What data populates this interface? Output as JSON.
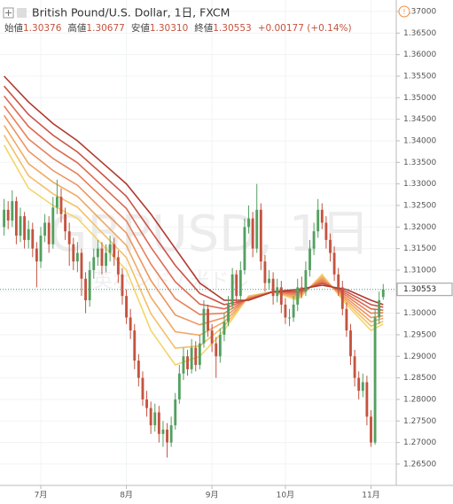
{
  "header": {
    "title": "British Pound/U.S. Dollar, 1日, FXCM",
    "items": [
      {
        "label": "始値",
        "value": "1.30376"
      },
      {
        "label": "高値",
        "value": "1.30677"
      },
      {
        "label": "安値",
        "value": "1.30310"
      },
      {
        "label": "終値",
        "value": "1.30553"
      }
    ],
    "change": "+0.00177 (+0.14%)"
  },
  "chart_data": {
    "type": "candlestick",
    "watermark": "GBPUSD, 1日",
    "watermark_subtitle": "英ポンド / 米ドル",
    "up_color": "#53a060",
    "down_color": "#c4533f",
    "open": [
      1.32,
      1.324,
      1.3215,
      1.326,
      1.318,
      1.3225,
      1.317,
      1.3195,
      1.315,
      1.312,
      1.318,
      1.321,
      1.316,
      1.3245,
      1.327,
      1.323,
      1.319,
      1.316,
      1.312,
      1.314,
      1.308,
      1.303,
      1.31,
      1.313,
      1.315,
      1.311,
      1.314,
      1.316,
      1.313,
      1.309,
      1.304,
      1.299,
      1.296,
      1.289,
      1.285,
      1.28,
      1.278,
      1.274,
      1.277,
      1.272,
      1.273,
      1.27,
      1.274,
      1.28,
      1.286,
      1.29,
      1.287,
      1.292,
      1.288,
      1.293,
      1.301,
      1.296,
      1.293,
      1.29,
      1.295,
      1.298,
      1.302,
      1.309,
      1.304,
      1.31,
      1.32,
      1.322,
      1.315,
      1.324,
      1.312,
      1.307,
      1.308,
      1.304,
      1.306,
      1.302,
      1.299,
      1.299,
      1.302,
      1.306,
      1.305,
      1.31,
      1.315,
      1.319,
      1.324,
      1.321,
      1.317,
      1.314,
      1.309,
      1.306,
      1.301,
      1.296,
      1.29,
      1.285,
      1.282,
      1.284,
      1.276,
      1.27,
      1.299,
      1.30376
    ],
    "high": [
      1.3265,
      1.326,
      1.3285,
      1.327,
      1.3245,
      1.3235,
      1.3215,
      1.321,
      1.3165,
      1.32,
      1.323,
      1.3225,
      1.327,
      1.331,
      1.329,
      1.3245,
      1.321,
      1.3175,
      1.3165,
      1.315,
      1.3095,
      1.312,
      1.315,
      1.317,
      1.3165,
      1.316,
      1.318,
      1.3175,
      1.3145,
      1.3105,
      1.3055,
      1.301,
      1.2975,
      1.2905,
      1.2865,
      1.282,
      1.2795,
      1.279,
      1.2785,
      1.275,
      1.2745,
      1.276,
      1.2815,
      1.288,
      1.292,
      1.2915,
      1.294,
      1.2935,
      1.295,
      1.303,
      1.302,
      1.2975,
      1.2945,
      1.2965,
      1.3,
      1.304,
      1.3105,
      1.31,
      1.312,
      1.322,
      1.325,
      1.3235,
      1.33,
      1.3255,
      1.3135,
      1.31,
      1.3095,
      1.308,
      1.3075,
      1.3035,
      1.301,
      1.304,
      1.308,
      1.3085,
      1.312,
      1.317,
      1.321,
      1.3265,
      1.3255,
      1.3225,
      1.3185,
      1.3155,
      1.3105,
      1.3075,
      1.3025,
      1.2975,
      1.2915,
      1.2865,
      1.286,
      1.2855,
      1.2775,
      1.301,
      1.305,
      1.30677
    ],
    "low": [
      1.318,
      1.3195,
      1.32,
      1.316,
      1.3165,
      1.315,
      1.315,
      1.313,
      1.306,
      1.3105,
      1.3165,
      1.314,
      1.315,
      1.323,
      1.321,
      1.317,
      1.311,
      1.31,
      1.3095,
      1.304,
      1.3,
      1.3015,
      1.308,
      1.311,
      1.309,
      1.3095,
      1.312,
      1.311,
      1.307,
      1.302,
      1.2975,
      1.294,
      1.287,
      1.283,
      1.2785,
      1.276,
      1.272,
      1.2725,
      1.27,
      1.269,
      1.2665,
      1.269,
      1.273,
      1.279,
      1.2845,
      1.2855,
      1.286,
      1.2865,
      1.287,
      1.292,
      1.2945,
      1.291,
      1.285,
      1.2885,
      1.2935,
      1.297,
      1.301,
      1.3025,
      1.303,
      1.309,
      1.3185,
      1.313,
      1.314,
      1.31,
      1.305,
      1.3055,
      1.302,
      1.3025,
      1.3,
      1.2975,
      1.297,
      1.298,
      1.3005,
      1.3035,
      1.304,
      1.3085,
      1.3135,
      1.3175,
      1.3195,
      1.315,
      1.312,
      1.3075,
      1.304,
      1.2995,
      1.2945,
      1.288,
      1.283,
      1.28,
      1.2805,
      1.274,
      1.269,
      1.2695,
      1.2975,
      1.3031
    ],
    "close": [
      1.324,
      1.3215,
      1.326,
      1.318,
      1.3225,
      1.317,
      1.3195,
      1.315,
      1.312,
      1.318,
      1.321,
      1.316,
      1.3245,
      1.327,
      1.323,
      1.319,
      1.316,
      1.312,
      1.314,
      1.308,
      1.303,
      1.31,
      1.313,
      1.315,
      1.311,
      1.314,
      1.316,
      1.313,
      1.309,
      1.304,
      1.299,
      1.296,
      1.289,
      1.285,
      1.28,
      1.278,
      1.274,
      1.277,
      1.272,
      1.273,
      1.27,
      1.274,
      1.28,
      1.286,
      1.29,
      1.287,
      1.292,
      1.288,
      1.293,
      1.301,
      1.296,
      1.293,
      1.29,
      1.295,
      1.298,
      1.302,
      1.309,
      1.304,
      1.31,
      1.32,
      1.322,
      1.315,
      1.324,
      1.312,
      1.307,
      1.308,
      1.304,
      1.306,
      1.302,
      1.299,
      1.299,
      1.302,
      1.306,
      1.305,
      1.31,
      1.315,
      1.319,
      1.324,
      1.321,
      1.317,
      1.314,
      1.309,
      1.306,
      1.301,
      1.296,
      1.29,
      1.285,
      1.282,
      1.284,
      1.276,
      1.27,
      1.299,
      1.303,
      1.30553
    ],
    "moving_averages": {
      "x": [
        0,
        6,
        12,
        18,
        24,
        30,
        36,
        42,
        48,
        54,
        60,
        66,
        72,
        78,
        84,
        90,
        93
      ],
      "series": [
        {
          "color": "#f5d46c",
          "values": [
            1.339,
            1.329,
            1.325,
            1.322,
            1.316,
            1.31,
            1.296,
            1.288,
            1.29,
            1.296,
            1.304,
            1.305,
            1.303,
            1.309,
            1.302,
            1.296,
            1.2975
          ]
        },
        {
          "color": "#f4bf68",
          "values": [
            1.3413,
            1.3319,
            1.3277,
            1.3246,
            1.3187,
            1.3129,
            1.2999,
            1.2919,
            1.2924,
            1.297,
            1.3039,
            1.305,
            1.3034,
            1.3086,
            1.3025,
            1.297,
            1.2981
          ]
        },
        {
          "color": "#f1a964",
          "values": [
            1.3436,
            1.3347,
            1.3304,
            1.3271,
            1.3214,
            1.3157,
            1.3037,
            1.2957,
            1.2949,
            1.298,
            1.3037,
            1.305,
            1.3037,
            1.3083,
            1.303,
            1.298,
            1.2988
          ]
        },
        {
          "color": "#ed955f",
          "values": [
            1.3459,
            1.3376,
            1.3331,
            1.3297,
            1.3241,
            1.3186,
            1.3076,
            1.2996,
            1.2973,
            1.299,
            1.3036,
            1.305,
            1.3041,
            1.3079,
            1.3035,
            1.299,
            1.2994
          ]
        },
        {
          "color": "#e8805a",
          "values": [
            1.3481,
            1.3404,
            1.3359,
            1.3323,
            1.3269,
            1.3214,
            1.3114,
            1.3034,
            1.2997,
            1.3,
            1.3034,
            1.305,
            1.3044,
            1.3076,
            1.304,
            1.3,
            1.3001
          ]
        },
        {
          "color": "#dd6a52",
          "values": [
            1.3504,
            1.3433,
            1.3386,
            1.3349,
            1.3296,
            1.3243,
            1.3153,
            1.3073,
            1.3021,
            1.301,
            1.3033,
            1.305,
            1.3048,
            1.3072,
            1.3045,
            1.301,
            1.3007
          ]
        },
        {
          "color": "#cb5446",
          "values": [
            1.3527,
            1.3461,
            1.3413,
            1.3374,
            1.3323,
            1.3271,
            1.3191,
            1.3111,
            1.3046,
            1.302,
            1.3031,
            1.305,
            1.3051,
            1.3069,
            1.305,
            1.302,
            1.3014
          ]
        },
        {
          "color": "#b03a2e",
          "values": [
            1.355,
            1.349,
            1.344,
            1.34,
            1.335,
            1.33,
            1.323,
            1.315,
            1.307,
            1.303,
            1.303,
            1.305,
            1.3055,
            1.3065,
            1.3055,
            1.303,
            1.302
          ]
        }
      ]
    },
    "last_price": {
      "value": 1.30553,
      "label": "1.30553"
    },
    "xlim": [
      -1,
      96.2
    ],
    "xticks": [
      {
        "value": 9,
        "label": "7月"
      },
      {
        "value": 30,
        "label": "8月"
      },
      {
        "value": 51,
        "label": "9月"
      },
      {
        "value": 69,
        "label": "10月"
      },
      {
        "value": 90,
        "label": "11月"
      }
    ],
    "ylim": [
      1.26005,
      1.37267
    ],
    "yticks": [
      {
        "value": 1.37,
        "label": "1.37000"
      },
      {
        "value": 1.365,
        "label": "1.36500"
      },
      {
        "value": 1.36,
        "label": "1.36000"
      },
      {
        "value": 1.355,
        "label": "1.35500"
      },
      {
        "value": 1.35,
        "label": "1.35000"
      },
      {
        "value": 1.345,
        "label": "1.34500"
      },
      {
        "value": 1.34,
        "label": "1.34000"
      },
      {
        "value": 1.335,
        "label": "1.33500"
      },
      {
        "value": 1.33,
        "label": "1.33000"
      },
      {
        "value": 1.325,
        "label": "1.32500"
      },
      {
        "value": 1.32,
        "label": "1.32000"
      },
      {
        "value": 1.315,
        "label": "1.31500"
      },
      {
        "value": 1.31,
        "label": "1.31000"
      },
      {
        "value": 1.305,
        "label": "1.30500"
      },
      {
        "value": 1.3,
        "label": "1.30000"
      },
      {
        "value": 1.295,
        "label": "1.29500"
      },
      {
        "value": 1.29,
        "label": "1.29000"
      },
      {
        "value": 1.285,
        "label": "1.28500"
      },
      {
        "value": 1.28,
        "label": "1.28000"
      },
      {
        "value": 1.275,
        "label": "1.27500"
      },
      {
        "value": 1.27,
        "label": "1.27000"
      },
      {
        "value": 1.265,
        "label": "1.26500"
      }
    ],
    "grid": true
  }
}
